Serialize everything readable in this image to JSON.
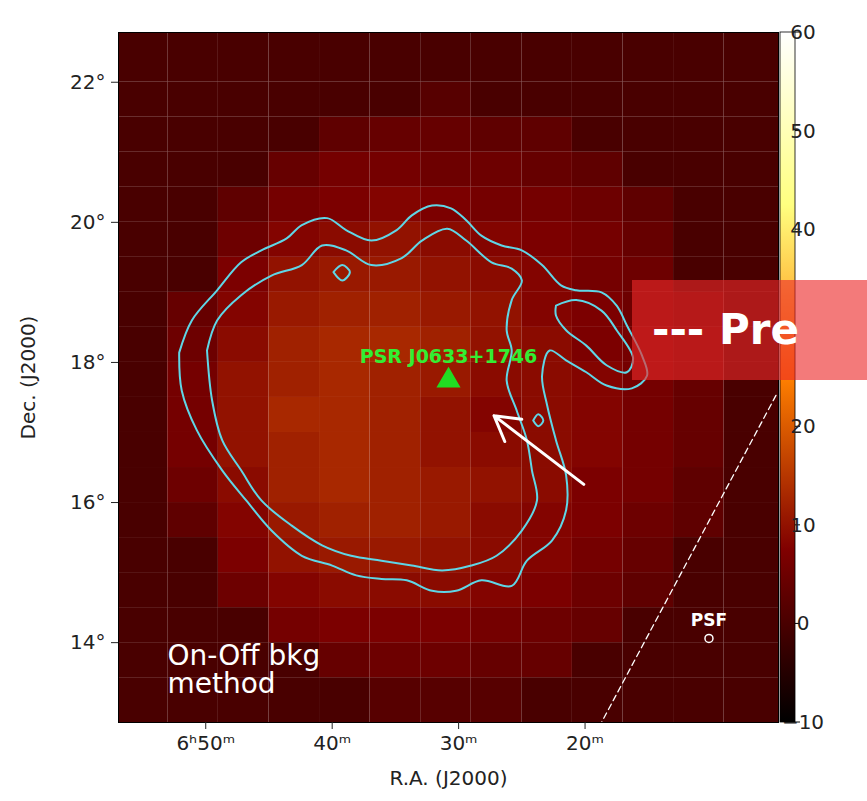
{
  "chart_data": {
    "type": "heatmap",
    "x_label": "R.A. (J2000)",
    "y_label": "Dec. (J2000)",
    "xlim": [
      56.9,
      4.7
    ],
    "ylim": [
      12.86,
      22.71
    ],
    "xticks": [
      {
        "value": 50,
        "label": "6ʰ50ᵐ"
      },
      {
        "value": 40,
        "label": "40ᵐ"
      },
      {
        "value": 30,
        "label": "30ᵐ"
      },
      {
        "value": 20,
        "label": "20ᵐ"
      }
    ],
    "yticks": [
      {
        "value": 14,
        "label": "14°"
      },
      {
        "value": 16,
        "label": "16°"
      },
      {
        "value": 18,
        "label": "18°"
      },
      {
        "value": 20,
        "label": "20°"
      },
      {
        "value": 22,
        "label": "22°"
      }
    ],
    "cells": {
      "ra_edges": [
        56.9,
        53,
        49,
        45,
        41,
        37,
        33,
        29,
        25,
        21,
        17,
        13,
        9,
        4.7
      ],
      "dec_edges": [
        12.86,
        13.5,
        14,
        14.5,
        15,
        15.5,
        16,
        16.5,
        17,
        17.5,
        18,
        18.5,
        19,
        19.5,
        20,
        20.5,
        21,
        21.5,
        22,
        22.71
      ],
      "values": [
        [
          0,
          0,
          0,
          0,
          0,
          2,
          2,
          2,
          0,
          0,
          0,
          0,
          0
        ],
        [
          0,
          0,
          0,
          0,
          4,
          5,
          5,
          4,
          4,
          0,
          0,
          0,
          0
        ],
        [
          0,
          0,
          0,
          6,
          7,
          7,
          7,
          6,
          5,
          4,
          0,
          0,
          0
        ],
        [
          0,
          0,
          5,
          8,
          9,
          9,
          9,
          8,
          7,
          5,
          3,
          0,
          0
        ],
        [
          0,
          0,
          7,
          10,
          11,
          11,
          10,
          9,
          8,
          6,
          4,
          0,
          0
        ],
        [
          0,
          3,
          8,
          11,
          12,
          12,
          11,
          9,
          8,
          7,
          5,
          3,
          0
        ],
        [
          0,
          5,
          9,
          12,
          13,
          12,
          11,
          10,
          9,
          7,
          6,
          3,
          0
        ],
        [
          0,
          6,
          10,
          12,
          13,
          12,
          10,
          9,
          9,
          8,
          6,
          4,
          0
        ],
        [
          0,
          6,
          10,
          13,
          13,
          12,
          10,
          8,
          9,
          8,
          6,
          4,
          0
        ],
        [
          0,
          6,
          10,
          12,
          13,
          12,
          11,
          9,
          9,
          8,
          6,
          4,
          0
        ],
        [
          0,
          5,
          9,
          12,
          13,
          13,
          12,
          10,
          9,
          7,
          6,
          4,
          0
        ],
        [
          0,
          4,
          8,
          11,
          12,
          12,
          11,
          10,
          8,
          7,
          5,
          3,
          0
        ],
        [
          0,
          0,
          7,
          10,
          11,
          11,
          10,
          9,
          8,
          6,
          5,
          0,
          0
        ],
        [
          0,
          0,
          5,
          8,
          9,
          10,
          9,
          8,
          7,
          6,
          4,
          0,
          0
        ],
        [
          0,
          0,
          3,
          6,
          7,
          8,
          7,
          6,
          6,
          5,
          3,
          0,
          0
        ],
        [
          0,
          0,
          0,
          4,
          6,
          6,
          5,
          5,
          4,
          3,
          0,
          0,
          0
        ],
        [
          0,
          0,
          0,
          0,
          3,
          4,
          4,
          3,
          3,
          0,
          0,
          0,
          0
        ],
        [
          0,
          0,
          0,
          0,
          0,
          0,
          2,
          0,
          0,
          0,
          0,
          0,
          0
        ],
        [
          0,
          0,
          0,
          0,
          0,
          0,
          0,
          0,
          0,
          0,
          0,
          0,
          0
        ]
      ]
    },
    "colorbar": {
      "range": [
        -10,
        60
      ],
      "ticks": [
        {
          "value": -10,
          "label": "−10"
        },
        0,
        10,
        20,
        40,
        50,
        60
      ]
    },
    "contours": [
      [
        [
          52.1,
          18.14
        ],
        [
          51.1,
          18.6
        ],
        [
          49.1,
          19.03
        ],
        [
          47.2,
          19.43
        ],
        [
          45.6,
          19.6
        ],
        [
          43.6,
          19.77
        ],
        [
          42.4,
          19.96
        ],
        [
          40.4,
          20.06
        ],
        [
          38.9,
          19.89
        ],
        [
          36.9,
          19.74
        ],
        [
          34.9,
          19.89
        ],
        [
          33.7,
          20.1
        ],
        [
          32.1,
          20.24
        ],
        [
          30.6,
          20.2
        ],
        [
          29.4,
          20.03
        ],
        [
          28.2,
          19.81
        ],
        [
          26.6,
          19.67
        ],
        [
          25.0,
          19.6
        ],
        [
          23.4,
          19.39
        ],
        [
          21.9,
          19.1
        ],
        [
          20.7,
          19.03
        ],
        [
          18.7,
          19.0
        ],
        [
          17.5,
          18.81
        ],
        [
          16.7,
          18.53
        ],
        [
          15.5,
          18.1
        ],
        [
          15.1,
          17.81
        ],
        [
          16.3,
          17.63
        ],
        [
          18.3,
          17.67
        ],
        [
          19.9,
          17.86
        ],
        [
          21.5,
          18.03
        ],
        [
          22.8,
          18.17
        ],
        [
          23.4,
          17.81
        ],
        [
          23.0,
          17.39
        ],
        [
          22.3,
          16.89
        ],
        [
          21.5,
          16.39
        ],
        [
          21.5,
          15.89
        ],
        [
          22.6,
          15.46
        ],
        [
          24.6,
          15.17
        ],
        [
          25.8,
          14.81
        ],
        [
          28.2,
          14.89
        ],
        [
          30.2,
          14.74
        ],
        [
          32.1,
          14.74
        ],
        [
          34.1,
          14.89
        ],
        [
          36.1,
          14.91
        ],
        [
          38.1,
          14.96
        ],
        [
          40.0,
          15.1
        ],
        [
          42.4,
          15.24
        ],
        [
          44.8,
          15.6
        ],
        [
          46.8,
          16.03
        ],
        [
          48.7,
          16.46
        ],
        [
          50.7,
          17.03
        ],
        [
          51.9,
          17.6
        ],
        [
          52.1,
          18.14
        ]
      ],
      [
        [
          49.9,
          18.17
        ],
        [
          49.1,
          18.6
        ],
        [
          47.2,
          18.96
        ],
        [
          44.8,
          19.24
        ],
        [
          42.4,
          19.39
        ],
        [
          40.8,
          19.67
        ],
        [
          38.9,
          19.6
        ],
        [
          36.9,
          19.39
        ],
        [
          34.5,
          19.49
        ],
        [
          32.9,
          19.74
        ],
        [
          30.9,
          19.91
        ],
        [
          29.4,
          19.74
        ],
        [
          27.4,
          19.43
        ],
        [
          25.8,
          19.34
        ],
        [
          25.0,
          19.17
        ],
        [
          25.8,
          18.89
        ],
        [
          26.2,
          18.46
        ],
        [
          25.8,
          18.17
        ],
        [
          26.2,
          17.74
        ],
        [
          25.4,
          17.31
        ],
        [
          24.6,
          16.89
        ],
        [
          24.2,
          16.46
        ],
        [
          23.8,
          16.03
        ],
        [
          25.0,
          15.6
        ],
        [
          27.0,
          15.24
        ],
        [
          29.0,
          15.1
        ],
        [
          31.3,
          15.03
        ],
        [
          33.7,
          15.1
        ],
        [
          36.1,
          15.17
        ],
        [
          38.5,
          15.24
        ],
        [
          40.8,
          15.39
        ],
        [
          43.2,
          15.67
        ],
        [
          45.6,
          16.03
        ],
        [
          47.2,
          16.46
        ],
        [
          48.7,
          16.89
        ],
        [
          49.5,
          17.46
        ],
        [
          49.9,
          18.17
        ]
      ],
      [
        [
          39.9,
          19.29
        ],
        [
          39.2,
          19.39
        ],
        [
          38.6,
          19.29
        ],
        [
          39.2,
          19.17
        ],
        [
          39.9,
          19.29
        ]
      ],
      [
        [
          22.3,
          18.81
        ],
        [
          20.7,
          18.89
        ],
        [
          18.7,
          18.74
        ],
        [
          17.5,
          18.46
        ],
        [
          16.2,
          18.06
        ],
        [
          16.7,
          17.86
        ],
        [
          18.3,
          17.96
        ],
        [
          19.9,
          18.24
        ],
        [
          21.5,
          18.46
        ],
        [
          22.3,
          18.67
        ],
        [
          22.3,
          18.81
        ]
      ],
      [
        [
          24.1,
          17.17
        ],
        [
          23.7,
          17.26
        ],
        [
          23.3,
          17.17
        ],
        [
          23.7,
          17.09
        ],
        [
          24.1,
          17.17
        ]
      ]
    ],
    "pulsar": {
      "label": "PSR J0633+1746",
      "ra": 30.8,
      "dec": 17.74
    },
    "arrow": {
      "from": [
        20.1,
        16.26
      ],
      "to": [
        27.2,
        17.24
      ]
    },
    "dashed_line": [
      [
        4.9,
        17.53
      ],
      [
        18.7,
        12.86
      ]
    ],
    "psf": {
      "label": "PSF",
      "ra": 10.2,
      "dec": 14.06
    },
    "method_label": "On-Off bkg\nmethod",
    "watermark": "--- Pre"
  }
}
